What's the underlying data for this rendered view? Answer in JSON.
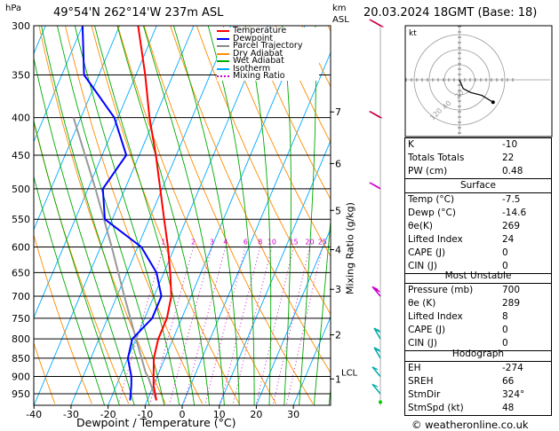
{
  "header": {
    "hpa_label": "hPa",
    "location": "49°54'N  262°14'W  237m  ASL",
    "km_label": "km",
    "asl_label": "ASL",
    "datetime": "20.03.2024  18GMT  (Base: 18)"
  },
  "legend": [
    {
      "label": "Temperature",
      "color": "#ff0000",
      "style": "solid"
    },
    {
      "label": "Dewpoint",
      "color": "#0000ff",
      "style": "solid"
    },
    {
      "label": "Parcel Trajectory",
      "color": "#888888",
      "style": "solid"
    },
    {
      "label": "Dry Adiabat",
      "color": "#ff8c00",
      "style": "solid"
    },
    {
      "label": "Wet Adiabat",
      "color": "#00aa00",
      "style": "solid"
    },
    {
      "label": "Isotherm",
      "color": "#00aaff",
      "style": "solid"
    },
    {
      "label": "Mixing Ratio",
      "color": "#cc00cc",
      "style": "dotted"
    }
  ],
  "chart_data": {
    "type": "skew-t",
    "xlabel": "Dewpoint / Temperature (°C)",
    "ylabel": "Mixing Ratio (g/kg)",
    "x_ticks": [
      -40,
      -30,
      -20,
      -10,
      0,
      10,
      20,
      30
    ],
    "pressure_ticks": [
      300,
      350,
      400,
      450,
      500,
      550,
      600,
      650,
      700,
      750,
      800,
      850,
      900,
      950
    ],
    "pressure_range": [
      300,
      985
    ],
    "km_ticks": [
      {
        "km": "1",
        "p": 907
      },
      {
        "km": "2",
        "p": 790
      },
      {
        "km": "3",
        "p": 685
      },
      {
        "km": "4",
        "p": 605
      },
      {
        "km": "5",
        "p": 535
      },
      {
        "km": "6",
        "p": 462
      },
      {
        "km": "7",
        "p": 393
      }
    ],
    "lcl_label": "LCL",
    "lcl_pressure": 890,
    "mixing_ratio_labels": [
      {
        "label": "1",
        "t": -15.2
      },
      {
        "label": "2",
        "t": -6.9
      },
      {
        "label": "3",
        "t": -1.4
      },
      {
        "label": "4",
        "t": 1.4
      },
      {
        "label": "6",
        "t": 6.4
      },
      {
        "label": "8",
        "t": 10.2
      },
      {
        "label": "10",
        "t": 13.5
      },
      {
        "label": "15",
        "t": 20.8
      },
      {
        "label": "20",
        "t": 23.6
      },
      {
        "label": "25",
        "t": 26.6
      }
    ],
    "mixing_ratio_label_pressure": 600,
    "temperature": [
      {
        "p": 970,
        "t": -7.5
      },
      {
        "p": 925,
        "t": -10
      },
      {
        "p": 900,
        "t": -11
      },
      {
        "p": 850,
        "t": -13
      },
      {
        "p": 800,
        "t": -14
      },
      {
        "p": 750,
        "t": -14
      },
      {
        "p": 700,
        "t": -15.3
      },
      {
        "p": 650,
        "t": -18.3
      },
      {
        "p": 600,
        "t": -21.8
      },
      {
        "p": 550,
        "t": -26
      },
      {
        "p": 500,
        "t": -30.5
      },
      {
        "p": 450,
        "t": -35.5
      },
      {
        "p": 400,
        "t": -41.5
      },
      {
        "p": 350,
        "t": -47.5
      },
      {
        "p": 300,
        "t": -55
      }
    ],
    "dewpoint": [
      {
        "p": 970,
        "t": -14.6
      },
      {
        "p": 925,
        "t": -16
      },
      {
        "p": 900,
        "t": -17
      },
      {
        "p": 850,
        "t": -20
      },
      {
        "p": 800,
        "t": -21
      },
      {
        "p": 750,
        "t": -18
      },
      {
        "p": 700,
        "t": -18
      },
      {
        "p": 650,
        "t": -22
      },
      {
        "p": 600,
        "t": -29
      },
      {
        "p": 550,
        "t": -42
      },
      {
        "p": 500,
        "t": -46
      },
      {
        "p": 450,
        "t": -43.5
      },
      {
        "p": 400,
        "t": -51
      },
      {
        "p": 350,
        "t": -64
      },
      {
        "p": 300,
        "t": -70
      }
    ],
    "parcel": [
      {
        "p": 970,
        "t": -7.5
      },
      {
        "p": 900,
        "t": -12.5
      },
      {
        "p": 890,
        "t": -13.5
      },
      {
        "p": 800,
        "t": -20
      },
      {
        "p": 700,
        "t": -28
      },
      {
        "p": 600,
        "t": -37
      },
      {
        "p": 500,
        "t": -48
      },
      {
        "p": 400,
        "t": -62
      }
    ],
    "wind_barbs": [
      {
        "p": 300,
        "dir": 300,
        "kt": 70
      },
      {
        "p": 400,
        "dir": 300,
        "kt": 55
      },
      {
        "p": 500,
        "dir": 300,
        "kt": 45
      },
      {
        "p": 700,
        "dir": 320,
        "kt": 25
      },
      {
        "p": 800,
        "dir": 330,
        "kt": 15
      },
      {
        "p": 850,
        "dir": 330,
        "kt": 15
      },
      {
        "p": 900,
        "dir": 320,
        "kt": 10
      },
      {
        "p": 950,
        "dir": 320,
        "kt": 10
      }
    ]
  },
  "hodograph": {
    "kt_label": "kt",
    "ring_labels": [
      "20",
      "40",
      "120"
    ],
    "points": [
      [
        0,
        0
      ],
      [
        4,
        -18
      ],
      [
        12,
        -26
      ],
      [
        24,
        -32
      ],
      [
        36,
        -46
      ]
    ]
  },
  "indices": {
    "rows": [
      {
        "label": "K",
        "value": "-10"
      },
      {
        "label": "Totals Totals",
        "value": "22"
      },
      {
        "label": "PW (cm)",
        "value": "0.48"
      }
    ]
  },
  "surface": {
    "title": "Surface",
    "rows": [
      {
        "label": "Temp (°C)",
        "value": "-7.5"
      },
      {
        "label": "Dewp (°C)",
        "value": "-14.6"
      },
      {
        "label": "θe(K)",
        "value": "269"
      },
      {
        "label": "Lifted Index",
        "value": "24"
      },
      {
        "label": "CAPE (J)",
        "value": "0"
      },
      {
        "label": "CIN (J)",
        "value": "0"
      }
    ]
  },
  "most_unstable": {
    "title": "Most Unstable",
    "rows": [
      {
        "label": "Pressure (mb)",
        "value": "700"
      },
      {
        "label": "θe (K)",
        "value": "289"
      },
      {
        "label": "Lifted Index",
        "value": "8"
      },
      {
        "label": "CAPE (J)",
        "value": "0"
      },
      {
        "label": "CIN (J)",
        "value": "0"
      }
    ]
  },
  "hodograph_table": {
    "title": "Hodograph",
    "rows": [
      {
        "label": "EH",
        "value": "-274"
      },
      {
        "label": "SREH",
        "value": "66"
      },
      {
        "label": "StmDir",
        "value": "324°"
      },
      {
        "label": "StmSpd (kt)",
        "value": "48"
      }
    ]
  },
  "footer": {
    "copyright": "© weatheronline.co.uk"
  }
}
